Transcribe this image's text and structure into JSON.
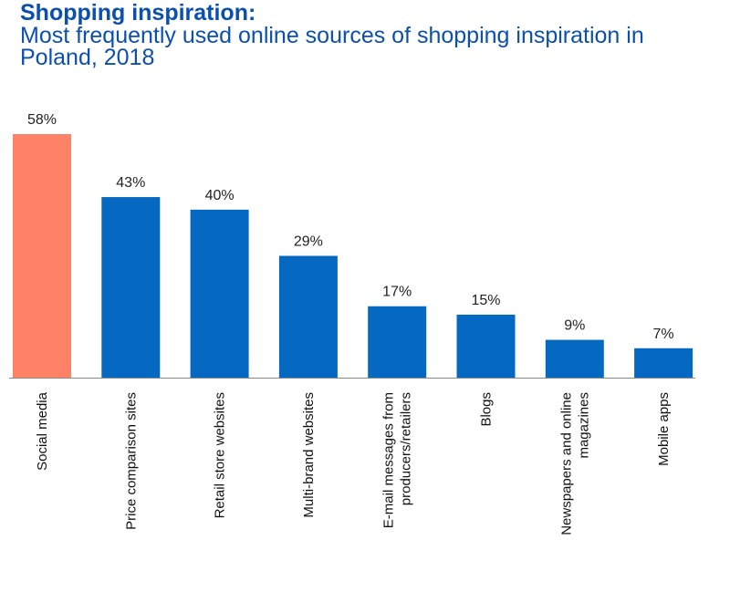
{
  "title": "Shopping inspiration:",
  "subtitle": "Most frequently used online sources of shopping inspiration in Poland, 2018",
  "colors": {
    "highlight": "#ff8266",
    "bar": "#0669c1",
    "title": "#0b4fb0",
    "axis": "#888888"
  },
  "chart_data": {
    "type": "bar",
    "categories": [
      [
        "Social media"
      ],
      [
        "Price comparison sites"
      ],
      [
        "Retail store websites"
      ],
      [
        "Multi-brand websites"
      ],
      [
        "E-mail messages from",
        "producers/retailers"
      ],
      [
        "Blogs"
      ],
      [
        "Newspapers and online",
        "magazines"
      ],
      [
        "Mobile apps"
      ]
    ],
    "values": [
      58,
      43,
      40,
      29,
      17,
      15,
      9,
      7
    ],
    "value_labels": [
      "58%",
      "43%",
      "40%",
      "29%",
      "17%",
      "15%",
      "9%",
      "7%"
    ],
    "highlight_index": 0,
    "ylim": [
      0,
      58
    ],
    "grid": false,
    "legend": "none"
  }
}
